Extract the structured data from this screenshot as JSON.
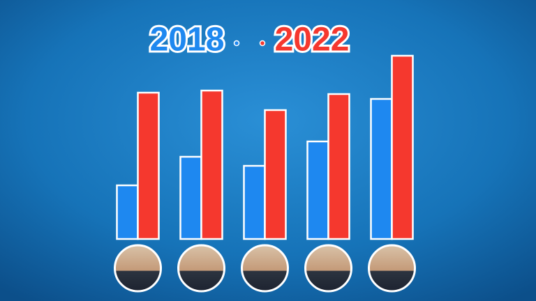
{
  "chart_data": {
    "type": "bar",
    "categories": [
      null,
      null,
      null,
      null,
      null
    ],
    "series": [
      {
        "name": "2018",
        "color": "#1e88f0",
        "values": [
          77,
          118,
          105,
          140,
          201
        ]
      },
      {
        "name": "2022",
        "color": "#f5382e",
        "values": [
          210,
          213,
          185,
          208,
          263
        ]
      }
    ],
    "ylim": [
      0,
      270
    ]
  }
}
